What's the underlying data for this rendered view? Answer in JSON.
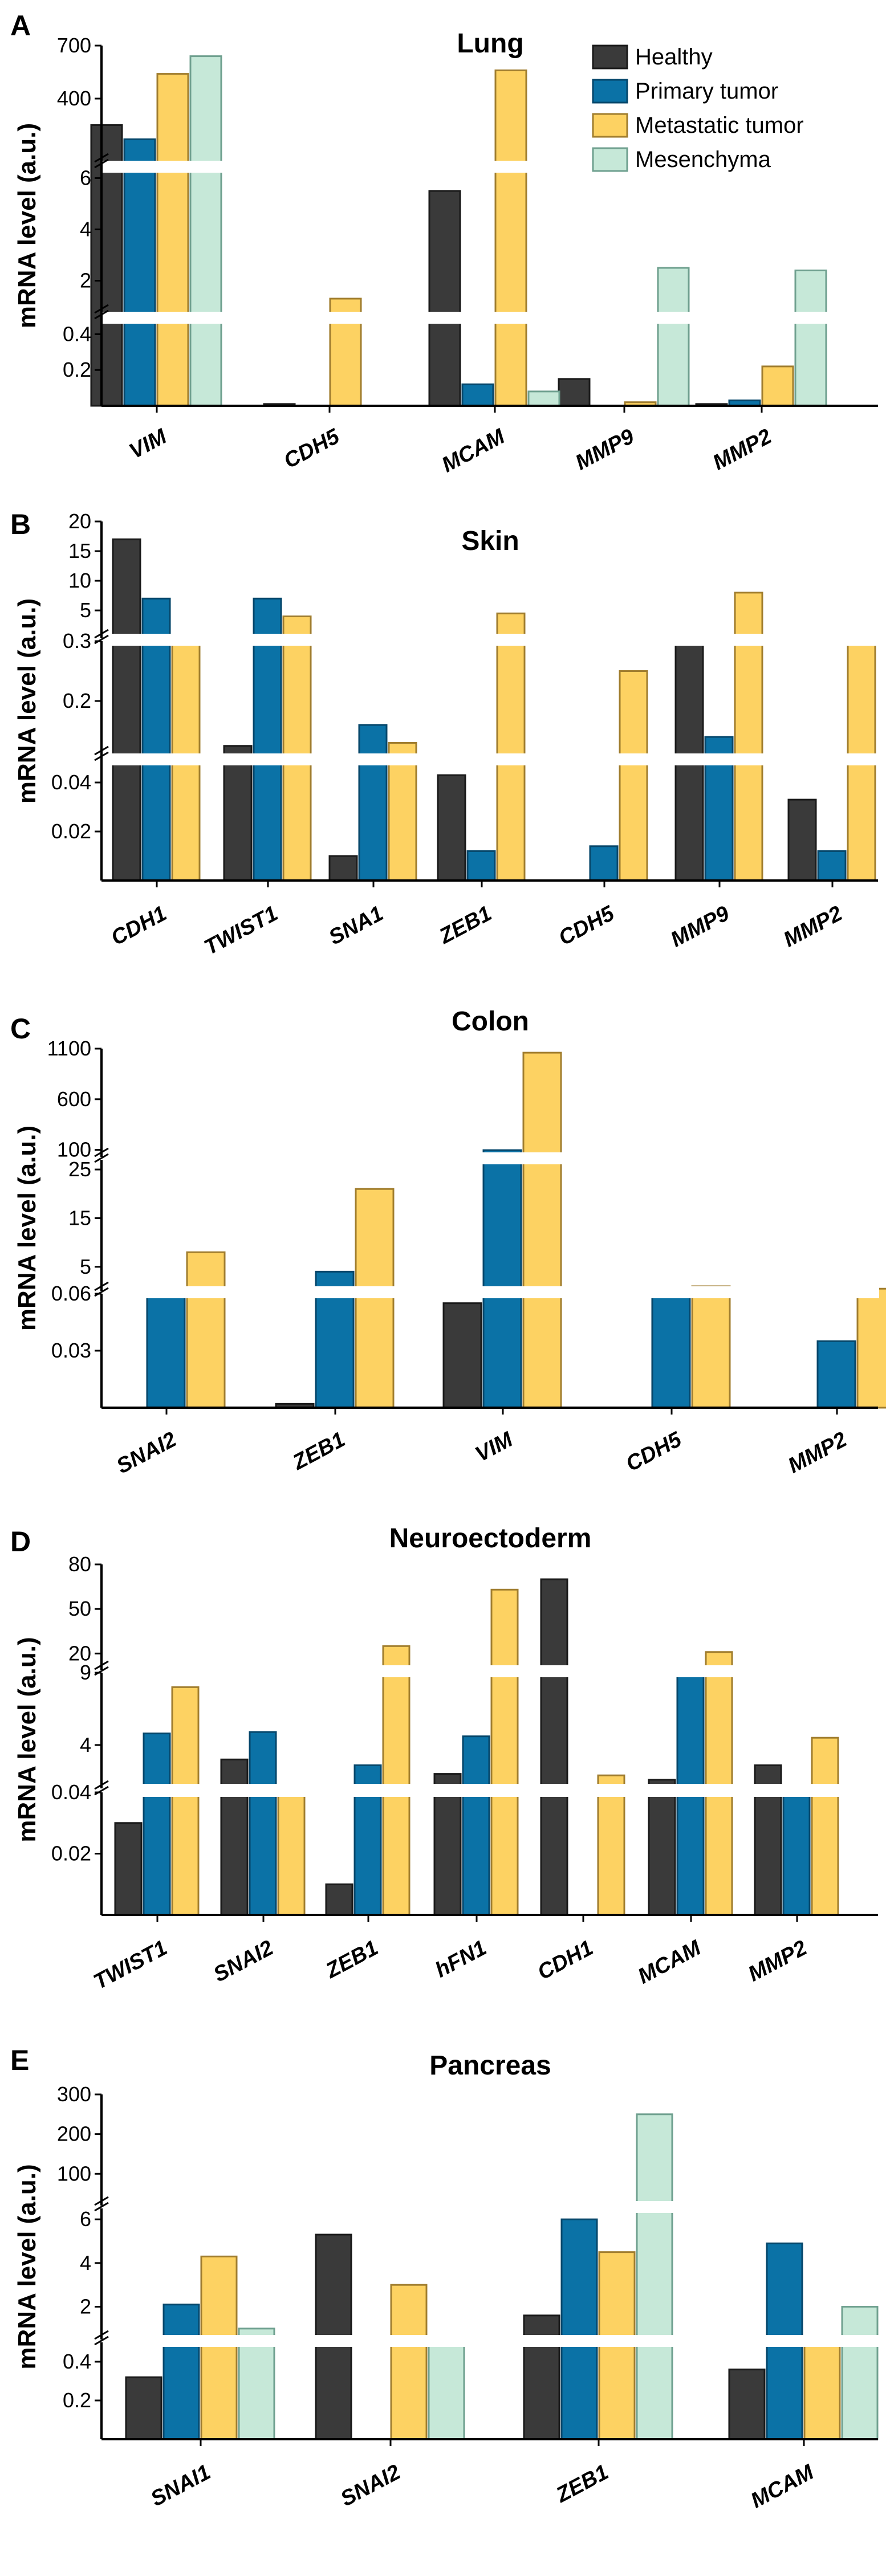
{
  "legend": [
    {
      "name": "Healthy",
      "color": "#3a3a3a",
      "stroke": "#1a1a1a"
    },
    {
      "name": "Primary tumor",
      "color": "#0b72a6",
      "stroke": "#06476b"
    },
    {
      "name": "Metastatic tumor",
      "color": "#fdd262",
      "stroke": "#a07d2e"
    },
    {
      "name": "Mesenchyma",
      "color": "#c6e8d8",
      "stroke": "#6fa08f"
    }
  ],
  "chart_data": [
    {
      "panel": "A",
      "type": "bar",
      "title": "Lung",
      "ylabel": "mRNA level (a.u.)",
      "categories": [
        "VIM",
        "CDH5",
        "MCAM",
        "MMP9",
        "MMP2"
      ],
      "series": [
        {
          "name": "Healthy",
          "values": [
            250,
            0.01,
            5.5,
            0.15,
            0.01
          ]
        },
        {
          "name": "Primary tumor",
          "values": [
            170,
            0,
            0.12,
            0,
            0.03
          ]
        },
        {
          "name": "Metastatic tumor",
          "values": [
            540,
            1.3,
            560,
            0.02,
            0.22
          ]
        },
        {
          "name": "Mesenchyma",
          "values": [
            640,
            0,
            0.08,
            2.5,
            2.4
          ]
        }
      ],
      "segments": [
        {
          "range": [
            0,
            0.5
          ],
          "ticks": [
            0.2,
            0.4
          ],
          "tick_labels": [
            "0.2",
            "0.4"
          ]
        },
        {
          "range": [
            0.5,
            6.5
          ],
          "ticks": [
            2,
            4,
            6
          ],
          "tick_labels": [
            "2",
            "4",
            "6"
          ]
        },
        {
          "range": [
            6.5,
            700
          ],
          "ticks": [
            400,
            700
          ],
          "tick_labels": [
            "400",
            "700"
          ]
        }
      ]
    },
    {
      "panel": "B",
      "type": "bar",
      "title": "Skin",
      "ylabel": "mRNA level (a.u.)",
      "categories": [
        "CDH1",
        "TWIST1",
        "SNA1",
        "ZEB1",
        "CDH5",
        "MMP9",
        "MMP2"
      ],
      "series": [
        {
          "name": "Healthy",
          "values": [
            17,
            0.125,
            0.01,
            0.043,
            0,
            0.3,
            0.033
          ]
        },
        {
          "name": "Primary tumor",
          "values": [
            7,
            7,
            0.16,
            0.012,
            0.014,
            0.14,
            0.012
          ]
        },
        {
          "name": "Metastatic tumor",
          "values": [
            0.5,
            4,
            0.13,
            4.5,
            0.25,
            8,
            0.3
          ]
        }
      ],
      "segments": [
        {
          "range": [
            0,
            0.05
          ],
          "ticks": [
            0.02,
            0.04
          ],
          "tick_labels": [
            "0.02",
            "0.04"
          ]
        },
        {
          "range": [
            0.1,
            0.3
          ],
          "ticks": [
            0.2,
            0.3
          ],
          "tick_labels": [
            "0.2",
            "0.3"
          ]
        },
        {
          "range": [
            0.3,
            20
          ],
          "ticks": [
            5,
            10,
            15,
            20
          ],
          "tick_labels": [
            "5",
            "10",
            "15",
            "20"
          ]
        }
      ]
    },
    {
      "panel": "C",
      "type": "bar",
      "title": "Colon",
      "ylabel": "mRNA level (a.u.)",
      "categories": [
        "SNAI2",
        "ZEB1",
        "VIM",
        "CDH5",
        "MMP2"
      ],
      "series": [
        {
          "name": "Healthy",
          "values": [
            0,
            0.002,
            0.055,
            0,
            0
          ]
        },
        {
          "name": "Primary tumor",
          "values": [
            0.06,
            4,
            97,
            0.5,
            0.035
          ]
        },
        {
          "name": "Metastatic tumor",
          "values": [
            8,
            21,
            1060,
            1,
            0.5
          ]
        }
      ],
      "segments": [
        {
          "range": [
            0,
            0.06
          ],
          "ticks": [
            0.03,
            0.06
          ],
          "tick_labels": [
            "0.03",
            "0.06"
          ]
        },
        {
          "range": [
            0.06,
            27
          ],
          "ticks": [
            5,
            15,
            25
          ],
          "tick_labels": [
            "5",
            "15",
            "25"
          ]
        },
        {
          "range": [
            30,
            1100
          ],
          "ticks": [
            100,
            600,
            1100
          ],
          "tick_labels": [
            "100",
            "600",
            "1100"
          ]
        }
      ]
    },
    {
      "panel": "D",
      "type": "bar",
      "title": "Neuroectoderm",
      "ylabel": "mRNA level (a.u.)",
      "categories": [
        "TWIST1",
        "SNAI2",
        "ZEB1",
        "hFN1",
        "CDH1",
        "MCAM",
        "MMP2"
      ],
      "series": [
        {
          "name": "Healthy",
          "values": [
            0.03,
            3,
            0.01,
            2,
            70,
            1.6,
            2.6
          ]
        },
        {
          "name": "Primary tumor",
          "values": [
            4.8,
            4.9,
            2.6,
            4.6,
            0,
            9,
            0.8
          ]
        },
        {
          "name": "Metastatic tumor",
          "values": [
            8,
            0.04,
            25,
            63,
            1.9,
            21,
            4.5
          ]
        }
      ],
      "segments": [
        {
          "range": [
            0,
            0.04
          ],
          "ticks": [
            0.02,
            0.04
          ],
          "tick_labels": [
            "0.02",
            "0.04"
          ]
        },
        {
          "range": [
            1,
            9
          ],
          "ticks": [
            4,
            9
          ],
          "tick_labels": [
            "4",
            "9"
          ]
        },
        {
          "range": [
            9,
            80
          ],
          "ticks": [
            20,
            50,
            80
          ],
          "tick_labels": [
            "20",
            "50",
            "80"
          ]
        }
      ]
    },
    {
      "panel": "E",
      "type": "bar",
      "title": "Pancreas",
      "ylabel": "mRNA level (a.u.)",
      "categories": [
        "SNAI1",
        "SNAI2",
        "ZEB1",
        "MCAM"
      ],
      "series": [
        {
          "name": "Healthy",
          "values": [
            0.32,
            5.3,
            1.6,
            0.36
          ]
        },
        {
          "name": "Primary tumor",
          "values": [
            2.1,
            0,
            6,
            4.9
          ]
        },
        {
          "name": "Metastatic tumor",
          "values": [
            4.3,
            3,
            4.5,
            0.5
          ]
        },
        {
          "name": "Mesenchyma",
          "values": [
            1,
            0.6,
            250,
            2
          ]
        }
      ],
      "segments": [
        {
          "range": [
            0,
            0.5
          ],
          "ticks": [
            0.2,
            0.4
          ],
          "tick_labels": [
            "0.2",
            "0.4"
          ]
        },
        {
          "range": [
            0.5,
            6.5
          ],
          "ticks": [
            2,
            4,
            6
          ],
          "tick_labels": [
            "2",
            "4",
            "6"
          ]
        },
        {
          "range": [
            20,
            300
          ],
          "ticks": [
            100,
            200,
            300
          ],
          "tick_labels": [
            "100",
            "200",
            "300"
          ]
        }
      ]
    }
  ]
}
